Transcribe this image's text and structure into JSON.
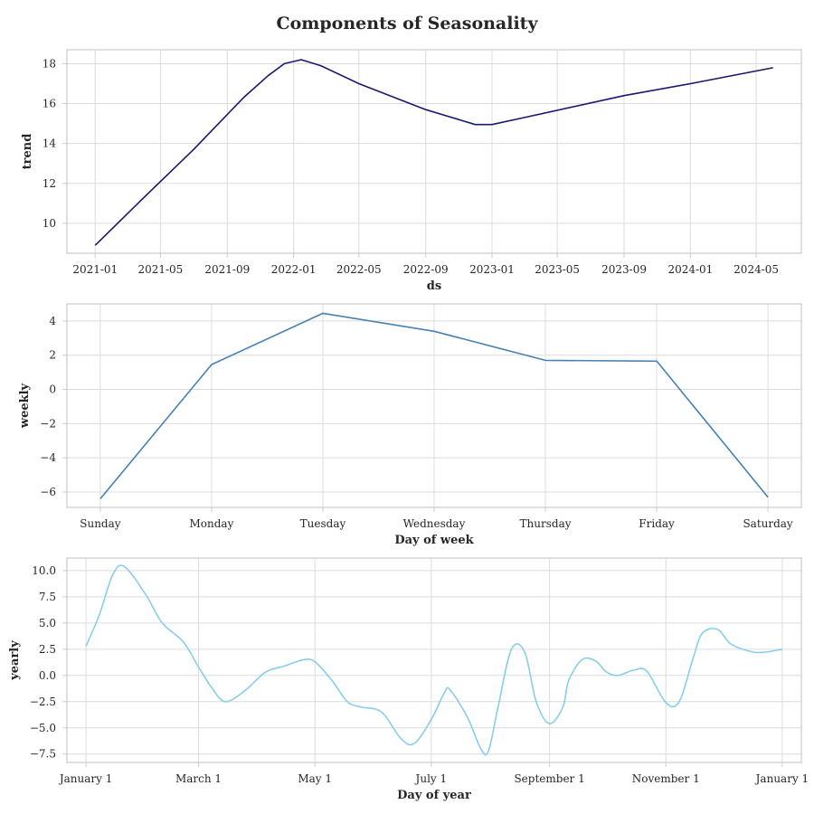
{
  "title": "Components of Seasonality",
  "chart_data": [
    {
      "type": "line",
      "ylabel": "trend",
      "xlabel": "ds",
      "x_type": "date",
      "xlim": [
        "2020-11-10",
        "2024-07-23"
      ],
      "ylim": [
        8.5,
        18.7
      ],
      "xtick_values": [
        "2021-01-01",
        "2021-05-01",
        "2021-09-01",
        "2022-01-01",
        "2022-05-01",
        "2022-09-01",
        "2023-01-01",
        "2023-05-01",
        "2023-09-01",
        "2024-01-01",
        "2024-05-01"
      ],
      "xtick_labels": [
        "2021-01",
        "2021-05",
        "2021-09",
        "2022-01",
        "2022-05",
        "2022-09",
        "2023-01",
        "2023-05",
        "2023-09",
        "2024-01",
        "2024-05"
      ],
      "ytick_values": [
        10,
        12,
        14,
        16,
        18
      ],
      "ytick_labels": [
        "10",
        "12",
        "14",
        "16",
        "18"
      ],
      "grid": true,
      "color": "#191970",
      "series": [
        {
          "x": [
            "2021-01-01",
            "2021-04-01",
            "2021-07-01",
            "2021-10-01",
            "2021-11-15",
            "2021-12-15",
            "2022-01-15",
            "2022-02-20",
            "2022-05-01",
            "2022-09-01",
            "2022-11-01",
            "2022-12-01",
            "2023-01-01",
            "2023-03-01",
            "2023-09-01",
            "2024-01-01",
            "2024-06-01"
          ],
          "y": [
            8.9,
            11.3,
            13.7,
            16.3,
            17.4,
            18.0,
            18.2,
            17.9,
            17.0,
            15.7,
            15.2,
            14.95,
            14.95,
            15.3,
            16.4,
            17.0,
            17.8
          ]
        }
      ]
    },
    {
      "type": "line",
      "ylabel": "weekly",
      "xlabel": "Day of week",
      "categories": [
        "Sunday",
        "Monday",
        "Tuesday",
        "Wednesday",
        "Thursday",
        "Friday",
        "Saturday"
      ],
      "ylim": [
        -6.9,
        5.0
      ],
      "ytick_values": [
        -6,
        -4,
        -2,
        0,
        2,
        4
      ],
      "ytick_labels": [
        "−6",
        "−4",
        "−2",
        "0",
        "2",
        "4"
      ],
      "grid": true,
      "color": "#4682b4",
      "series": [
        {
          "values": [
            -6.4,
            1.45,
            4.45,
            3.4,
            1.7,
            1.65,
            -6.3
          ]
        }
      ]
    },
    {
      "type": "line",
      "ylabel": "yearly",
      "xlabel": "Day of year",
      "x_type": "date",
      "xlim": [
        "2016-12-22",
        "2018-01-11"
      ],
      "ylim": [
        -8.3,
        11.2
      ],
      "xtick_values": [
        "2017-01-01",
        "2017-03-01",
        "2017-05-01",
        "2017-07-01",
        "2017-09-01",
        "2017-11-01",
        "2018-01-01"
      ],
      "xtick_labels": [
        "January 1",
        "March 1",
        "May 1",
        "July 1",
        "September 1",
        "November 1",
        "January 1"
      ],
      "ytick_values": [
        -7.5,
        -5.0,
        -2.5,
        0.0,
        2.5,
        5.0,
        7.5,
        10.0
      ],
      "ytick_labels": [
        "−7.5",
        "−5.0",
        "−2.5",
        "0.0",
        "2.5",
        "5.0",
        "7.5",
        "10.0"
      ],
      "grid": true,
      "color": "#87ceeb",
      "series": [
        {
          "x": [
            "2017-01-01",
            "2017-01-08",
            "2017-01-15",
            "2017-01-21",
            "2017-02-01",
            "2017-02-10",
            "2017-02-21",
            "2017-03-01",
            "2017-03-08",
            "2017-03-15",
            "2017-03-25",
            "2017-04-05",
            "2017-04-15",
            "2017-04-25",
            "2017-05-01",
            "2017-05-10",
            "2017-05-18",
            "2017-05-25",
            "2017-06-05",
            "2017-06-15",
            "2017-06-22",
            "2017-07-01",
            "2017-07-08",
            "2017-07-11",
            "2017-07-20",
            "2017-07-27",
            "2017-07-31",
            "2017-08-05",
            "2017-08-12",
            "2017-08-19",
            "2017-08-25",
            "2017-09-01",
            "2017-09-08",
            "2017-09-11",
            "2017-09-18",
            "2017-09-25",
            "2017-10-01",
            "2017-10-07",
            "2017-10-15",
            "2017-10-22",
            "2017-11-01",
            "2017-11-08",
            "2017-11-15",
            "2017-11-20",
            "2017-11-28",
            "2017-12-05",
            "2017-12-15",
            "2017-12-22",
            "2018-01-01"
          ],
          "y": [
            2.8,
            5.8,
            9.6,
            10.4,
            7.8,
            5.0,
            3.2,
            0.8,
            -1.2,
            -2.5,
            -1.5,
            0.3,
            0.9,
            1.5,
            1.3,
            -0.5,
            -2.5,
            -3.0,
            -3.5,
            -6.0,
            -6.5,
            -4.2,
            -1.6,
            -1.4,
            -4.0,
            -7.0,
            -7.2,
            -3.0,
            2.5,
            2.2,
            -2.5,
            -4.6,
            -3.0,
            -0.5,
            1.5,
            1.4,
            0.3,
            0.0,
            0.5,
            0.4,
            -2.6,
            -2.5,
            1.5,
            4.0,
            4.4,
            3.0,
            2.3,
            2.2,
            2.5
          ]
        }
      ]
    }
  ]
}
